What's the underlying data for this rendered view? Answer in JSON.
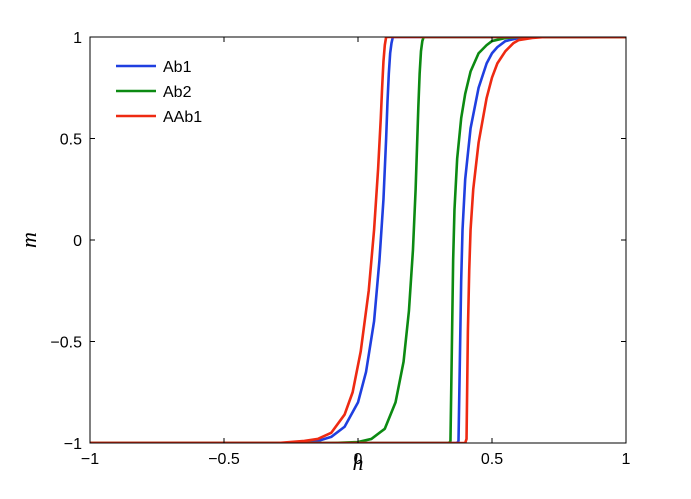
{
  "chart_data": {
    "type": "line",
    "title": "",
    "xlabel": "h",
    "ylabel": "m",
    "xlim": [
      -1,
      1
    ],
    "ylim": [
      -1,
      1
    ],
    "x_ticks": [
      -1,
      -0.5,
      0,
      0.5,
      1
    ],
    "x_tick_labels": [
      "−1",
      "−0.5",
      "0",
      "0.5",
      "1"
    ],
    "y_ticks": [
      -1,
      -0.5,
      0,
      0.5,
      1
    ],
    "y_tick_labels": [
      "−1",
      "−0.5",
      "0",
      "0.5",
      "1"
    ],
    "grid": false,
    "legend_position": "top-left",
    "series": [
      {
        "name": "Ab1",
        "color": "#1f3fe0",
        "branches": [
          {
            "x": [
              -1,
              -0.3,
              -0.2,
              -0.15,
              -0.1,
              -0.05,
              0.0,
              0.03,
              0.06,
              0.08,
              0.095,
              0.105,
              0.11,
              0.115,
              0.12,
              0.125,
              0.13,
              0.14,
              0.15,
              0.2,
              0.38,
              0.4,
              0.45,
              0.5,
              0.55,
              0.6,
              0.65,
              0.7,
              1.0
            ],
            "y": [
              -1,
              -1,
              -0.995,
              -0.99,
              -0.97,
              -0.92,
              -0.8,
              -0.65,
              -0.4,
              -0.1,
              0.2,
              0.5,
              0.68,
              0.82,
              0.92,
              0.97,
              1.0,
              1.0,
              1.0,
              1.0,
              1.0,
              1.0,
              1.0,
              1.0,
              1.0,
              1.0,
              1.0,
              1.0,
              1.0
            ]
          },
          {
            "x": [
              -1,
              0.3,
              0.35,
              0.37,
              0.375,
              0.38,
              0.385,
              0.39,
              0.4,
              0.42,
              0.45,
              0.48,
              0.5,
              0.52,
              0.55,
              0.6,
              0.65,
              0.7,
              1.0
            ],
            "y": [
              -1,
              -1,
              -1,
              -1,
              -0.99,
              -0.6,
              -0.2,
              0.05,
              0.3,
              0.55,
              0.75,
              0.87,
              0.92,
              0.95,
              0.98,
              0.995,
              1.0,
              1.0,
              1.0
            ]
          }
        ]
      },
      {
        "name": "Ab2",
        "color": "#0c8a12",
        "branches": [
          {
            "x": [
              -1,
              -0.1,
              0.0,
              0.05,
              0.1,
              0.14,
              0.17,
              0.19,
              0.205,
              0.215,
              0.22,
              0.225,
              0.23,
              0.235,
              0.24,
              0.245,
              0.25,
              0.3,
              1.0
            ],
            "y": [
              -1,
              -1,
              -0.995,
              -0.98,
              -0.93,
              -0.8,
              -0.6,
              -0.35,
              -0.05,
              0.25,
              0.45,
              0.65,
              0.82,
              0.93,
              0.98,
              1.0,
              1.0,
              1.0,
              1.0
            ]
          },
          {
            "x": [
              -1,
              0.3,
              0.34,
              0.345,
              0.35,
              0.355,
              0.36,
              0.37,
              0.385,
              0.4,
              0.42,
              0.45,
              0.48,
              0.5,
              0.55,
              0.6,
              1.0
            ],
            "y": [
              -1,
              -1,
              -1,
              -0.99,
              -0.55,
              -0.1,
              0.15,
              0.4,
              0.6,
              0.72,
              0.83,
              0.92,
              0.96,
              0.98,
              0.995,
              1.0,
              1.0
            ]
          }
        ]
      },
      {
        "name": "AAb1",
        "color": "#ee2a12",
        "branches": [
          {
            "x": [
              -1,
              -0.3,
              -0.2,
              -0.15,
              -0.1,
              -0.05,
              -0.02,
              0.01,
              0.04,
              0.06,
              0.075,
              0.085,
              0.09,
              0.095,
              0.1,
              0.105,
              0.11,
              0.15,
              1.0
            ],
            "y": [
              -1,
              -1,
              -0.99,
              -0.98,
              -0.95,
              -0.86,
              -0.75,
              -0.55,
              -0.25,
              0.05,
              0.35,
              0.6,
              0.75,
              0.88,
              0.96,
              1.0,
              1.0,
              1.0,
              1.0
            ]
          },
          {
            "x": [
              -1,
              0.35,
              0.4,
              0.405,
              0.41,
              0.415,
              0.42,
              0.43,
              0.45,
              0.48,
              0.5,
              0.52,
              0.55,
              0.58,
              0.6,
              0.65,
              0.7,
              1.0
            ],
            "y": [
              -1,
              -1,
              -1,
              -0.98,
              -0.45,
              -0.15,
              0.05,
              0.25,
              0.48,
              0.7,
              0.8,
              0.87,
              0.93,
              0.97,
              0.985,
              0.995,
              1.0,
              1.0
            ]
          }
        ]
      }
    ]
  }
}
